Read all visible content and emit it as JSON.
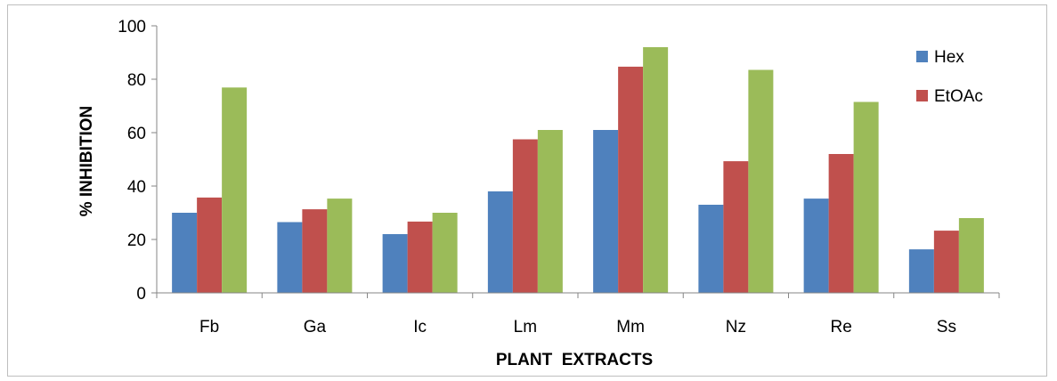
{
  "chart_data": {
    "type": "bar",
    "title": "",
    "xlabel": "PLANT  EXTRACTS",
    "ylabel": "% INHIBITION",
    "ylim": [
      0,
      100
    ],
    "yticks": [
      0,
      20,
      40,
      60,
      80,
      100
    ],
    "grid": false,
    "legend_position": "right",
    "categories": [
      "Fb",
      "Ga",
      "Ic",
      "Lm",
      "Mm",
      "Nz",
      "Re",
      "Ss"
    ],
    "series": [
      {
        "name": "Hex",
        "color": "#4f81bd",
        "values": [
          30,
          26.5,
          22,
          38,
          61,
          33,
          35.3,
          16.3
        ]
      },
      {
        "name": "EtOAc",
        "color": "#c0504d",
        "values": [
          35.7,
          31.3,
          26.7,
          57.5,
          84.7,
          49.3,
          52,
          23.3
        ]
      },
      {
        "color": "#9bbb59",
        "values": [
          76.9,
          35.3,
          30,
          61,
          92,
          83.5,
          71.5,
          28
        ]
      }
    ]
  }
}
